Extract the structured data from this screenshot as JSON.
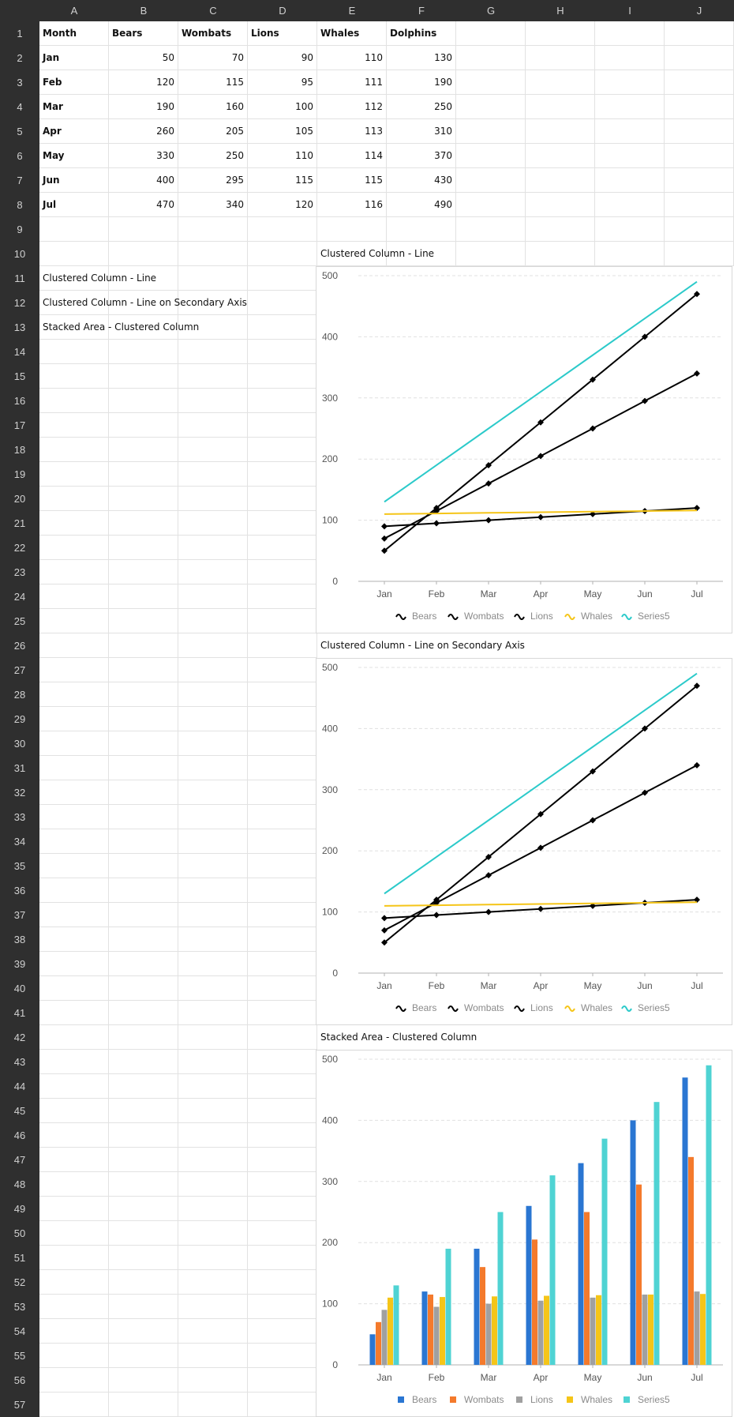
{
  "spreadsheet": {
    "columns": [
      "A",
      "B",
      "C",
      "D",
      "E",
      "F",
      "G",
      "H",
      "I",
      "J"
    ],
    "row_count": 57,
    "header": [
      "Month",
      "Bears",
      "Wombats",
      "Lions",
      "Whales",
      "Dolphins"
    ],
    "rows": [
      [
        "Jan",
        50,
        70,
        90,
        110,
        130
      ],
      [
        "Feb",
        120,
        115,
        95,
        111,
        190
      ],
      [
        "Mar",
        190,
        160,
        100,
        112,
        250
      ],
      [
        "Apr",
        260,
        205,
        105,
        113,
        310
      ],
      [
        "May",
        330,
        250,
        110,
        114,
        370
      ],
      [
        "Jun",
        400,
        295,
        115,
        115,
        430
      ],
      [
        "Jul",
        470,
        340,
        120,
        116,
        490
      ]
    ],
    "notes": {
      "a11": "Clustered Column - Line",
      "a12": "Clustered Column - Line on Secondary Axis",
      "a13": "Stacked Area - Clustered Column"
    },
    "chart_titles": {
      "chart1": "Clustered Column - Line",
      "chart2": "Clustered Column - Line on Secondary Axis",
      "chart3": "Stacked Area - Clustered Column"
    }
  },
  "colors": {
    "header_bg": "#2f2f2f",
    "bears": "#2a76d2",
    "wombats": "#f47a2c",
    "lions": "#a0a0a0",
    "whales": "#f5c518",
    "series5": "#4fd3d3",
    "line_black": "#000000",
    "line_whales": "#f5c518",
    "line_series5": "#2ccaca"
  },
  "chart_data": [
    {
      "type": "line",
      "title": "Clustered Column - Line",
      "categories": [
        "Jan",
        "Feb",
        "Mar",
        "Apr",
        "May",
        "Jun",
        "Jul"
      ],
      "ylim": [
        0,
        500
      ],
      "yticks": [
        0,
        100,
        200,
        300,
        400,
        500
      ],
      "grid": true,
      "legend": "bottom",
      "series": [
        {
          "name": "Bears",
          "values": [
            50,
            120,
            190,
            260,
            330,
            400,
            470
          ]
        },
        {
          "name": "Wombats",
          "values": [
            70,
            115,
            160,
            205,
            250,
            295,
            340
          ]
        },
        {
          "name": "Lions",
          "values": [
            90,
            95,
            100,
            105,
            110,
            115,
            120
          ]
        },
        {
          "name": "Whales",
          "values": [
            110,
            111,
            112,
            113,
            114,
            115,
            116
          ]
        },
        {
          "name": "Series5",
          "values": [
            130,
            190,
            250,
            310,
            370,
            430,
            490
          ]
        }
      ]
    },
    {
      "type": "line",
      "title": "Clustered Column - Line on Secondary Axis",
      "categories": [
        "Jan",
        "Feb",
        "Mar",
        "Apr",
        "May",
        "Jun",
        "Jul"
      ],
      "ylim": [
        0,
        500
      ],
      "yticks": [
        0,
        100,
        200,
        300,
        400,
        500
      ],
      "grid": true,
      "legend": "bottom",
      "series": [
        {
          "name": "Bears",
          "values": [
            50,
            120,
            190,
            260,
            330,
            400,
            470
          ]
        },
        {
          "name": "Wombats",
          "values": [
            70,
            115,
            160,
            205,
            250,
            295,
            340
          ]
        },
        {
          "name": "Lions",
          "values": [
            90,
            95,
            100,
            105,
            110,
            115,
            120
          ]
        },
        {
          "name": "Whales",
          "values": [
            110,
            111,
            112,
            113,
            114,
            115,
            116
          ]
        },
        {
          "name": "Series5",
          "values": [
            130,
            190,
            250,
            310,
            370,
            430,
            490
          ]
        }
      ]
    },
    {
      "type": "bar",
      "title": "Stacked Area - Clustered Column",
      "categories": [
        "Jan",
        "Feb",
        "Mar",
        "Apr",
        "May",
        "Jun",
        "Jul"
      ],
      "ylim": [
        0,
        500
      ],
      "yticks": [
        0,
        100,
        200,
        300,
        400,
        500
      ],
      "grid": true,
      "legend": "bottom",
      "series": [
        {
          "name": "Bears",
          "values": [
            50,
            120,
            190,
            260,
            330,
            400,
            470
          ]
        },
        {
          "name": "Wombats",
          "values": [
            70,
            115,
            160,
            205,
            250,
            295,
            340
          ]
        },
        {
          "name": "Lions",
          "values": [
            90,
            95,
            100,
            105,
            110,
            115,
            120
          ]
        },
        {
          "name": "Whales",
          "values": [
            110,
            111,
            112,
            113,
            114,
            115,
            116
          ]
        },
        {
          "name": "Series5",
          "values": [
            130,
            190,
            250,
            310,
            370,
            430,
            490
          ]
        }
      ]
    }
  ]
}
